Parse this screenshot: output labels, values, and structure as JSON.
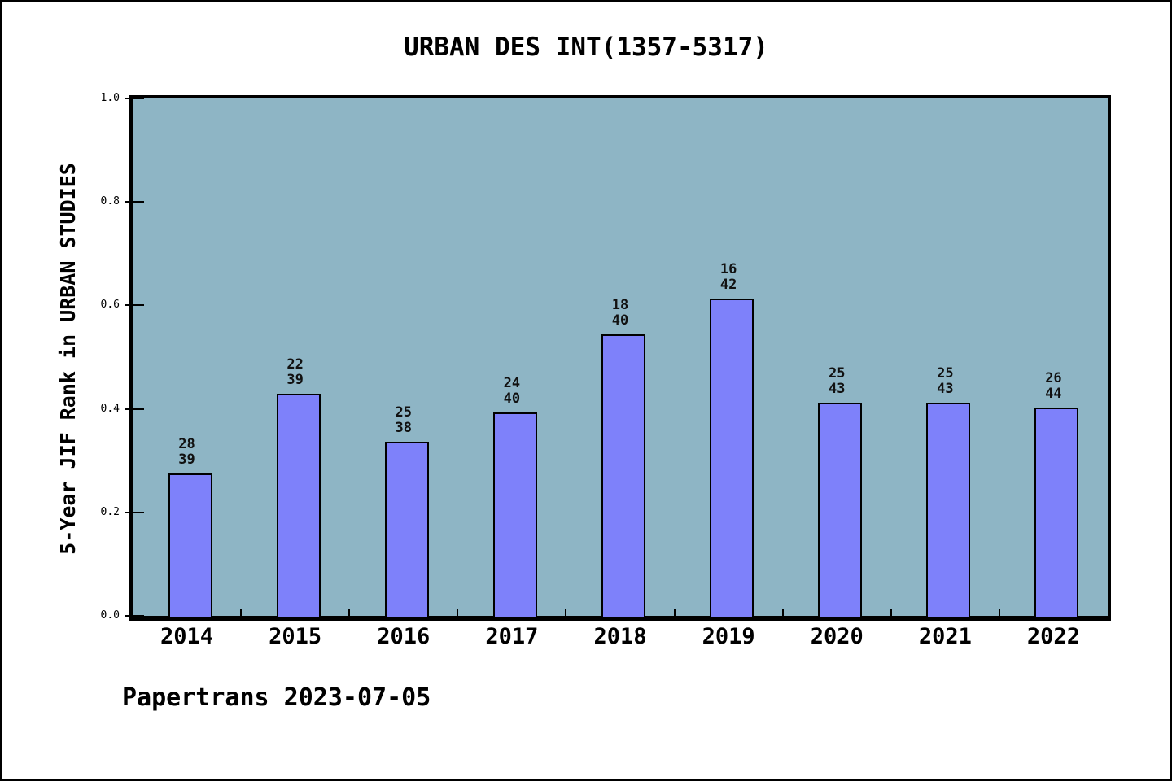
{
  "title": "URBAN DES INT(1357-5317)",
  "footer": "Papertrans 2023-07-05",
  "y_axis": {
    "label": "5-Year JIF Rank in URBAN STUDIES"
  },
  "chart_data": {
    "type": "bar",
    "title": "URBAN DES INT(1357-5317)",
    "ylabel": "5-Year JIF Rank in URBAN STUDIES",
    "xlabel": "",
    "categories": [
      "2014",
      "2015",
      "2016",
      "2017",
      "2018",
      "2019",
      "2020",
      "2021",
      "2022"
    ],
    "values": [
      0.282,
      0.436,
      0.342,
      0.4,
      0.55,
      0.619,
      0.419,
      0.419,
      0.409
    ],
    "bar_labels": [
      [
        "28",
        "39"
      ],
      [
        "22",
        "39"
      ],
      [
        "25",
        "38"
      ],
      [
        "24",
        "40"
      ],
      [
        "18",
        "40"
      ],
      [
        "16",
        "42"
      ],
      [
        "25",
        "43"
      ],
      [
        "25",
        "43"
      ],
      [
        "26",
        "44"
      ]
    ],
    "ylim": [
      0.0,
      1.0
    ],
    "ytick_labels": [
      "0.0",
      "0.2",
      "0.4",
      "0.6",
      "0.8",
      "1.0"
    ],
    "ytick_values": [
      0.0,
      0.2,
      0.4,
      0.6,
      0.8,
      1.0
    ],
    "grid": false,
    "legend_position": "none",
    "colors": {
      "bar_fill": "#7E81FA",
      "bar_edge": "#000000",
      "plot_background": "#8EB5C5",
      "figure_background": "#FFFFFF",
      "text": "#000000"
    }
  }
}
